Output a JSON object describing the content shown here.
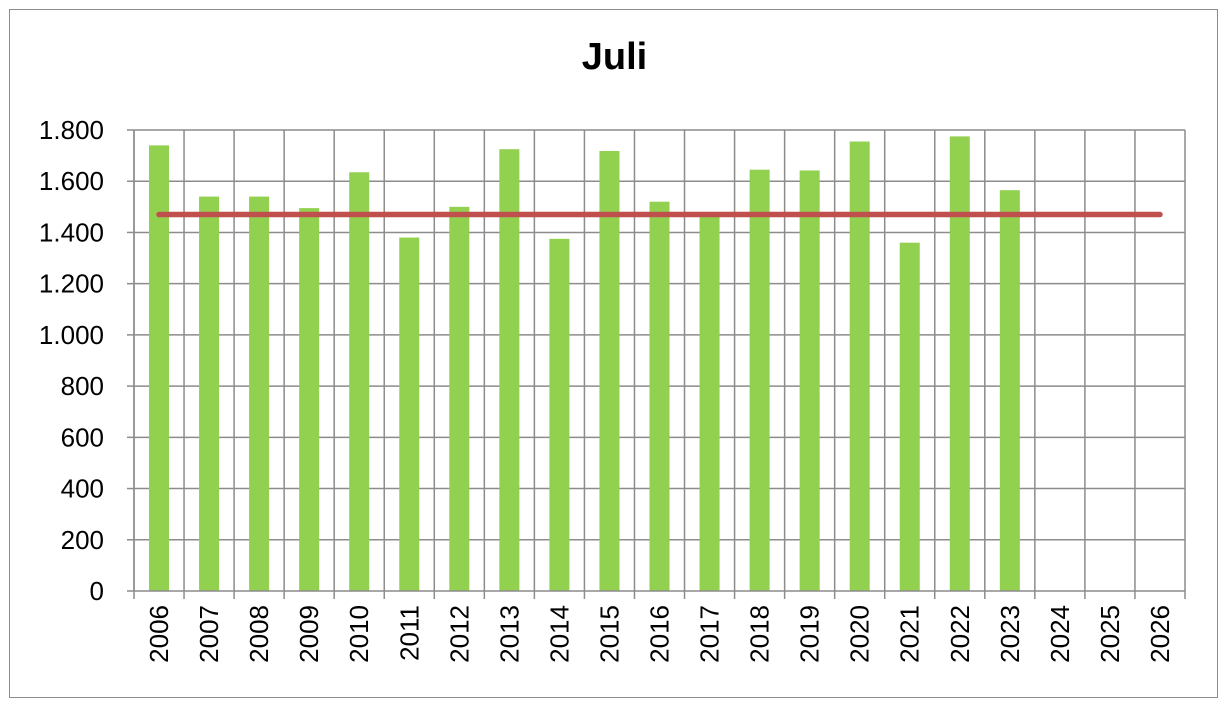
{
  "chart_data": {
    "type": "bar",
    "title": "Juli",
    "xlabel": "",
    "ylabel": "",
    "categories": [
      "2006",
      "2007",
      "2008",
      "2009",
      "2010",
      "2011",
      "2012",
      "2013",
      "2014",
      "2015",
      "2016",
      "2017",
      "2018",
      "2019",
      "2020",
      "2021",
      "2022",
      "2023",
      "2024",
      "2025",
      "2026"
    ],
    "series": [
      {
        "type": "bar",
        "color": "#92d050",
        "values": [
          1740,
          1540,
          1540,
          1495,
          1635,
          1380,
          1500,
          1725,
          1375,
          1718,
          1520,
          1465,
          1645,
          1642,
          1755,
          1360,
          1775,
          1565,
          null,
          null,
          null
        ]
      },
      {
        "type": "line",
        "color": "#c0504d",
        "values": [
          1470,
          1470,
          1470,
          1470,
          1470,
          1470,
          1470,
          1470,
          1470,
          1470,
          1470,
          1470,
          1470,
          1470,
          1470,
          1470,
          1470,
          1470,
          1470,
          1470,
          1470
        ]
      }
    ],
    "ylim": [
      0,
      1800
    ],
    "yticks": [
      0,
      200,
      400,
      600,
      800,
      1000,
      1200,
      1400,
      1600,
      1800
    ],
    "ytick_labels": [
      "0",
      "200",
      "400",
      "600",
      "800",
      "1.000",
      "1.200",
      "1.400",
      "1.600",
      "1.800"
    ],
    "grid": true,
    "legend": "none"
  }
}
